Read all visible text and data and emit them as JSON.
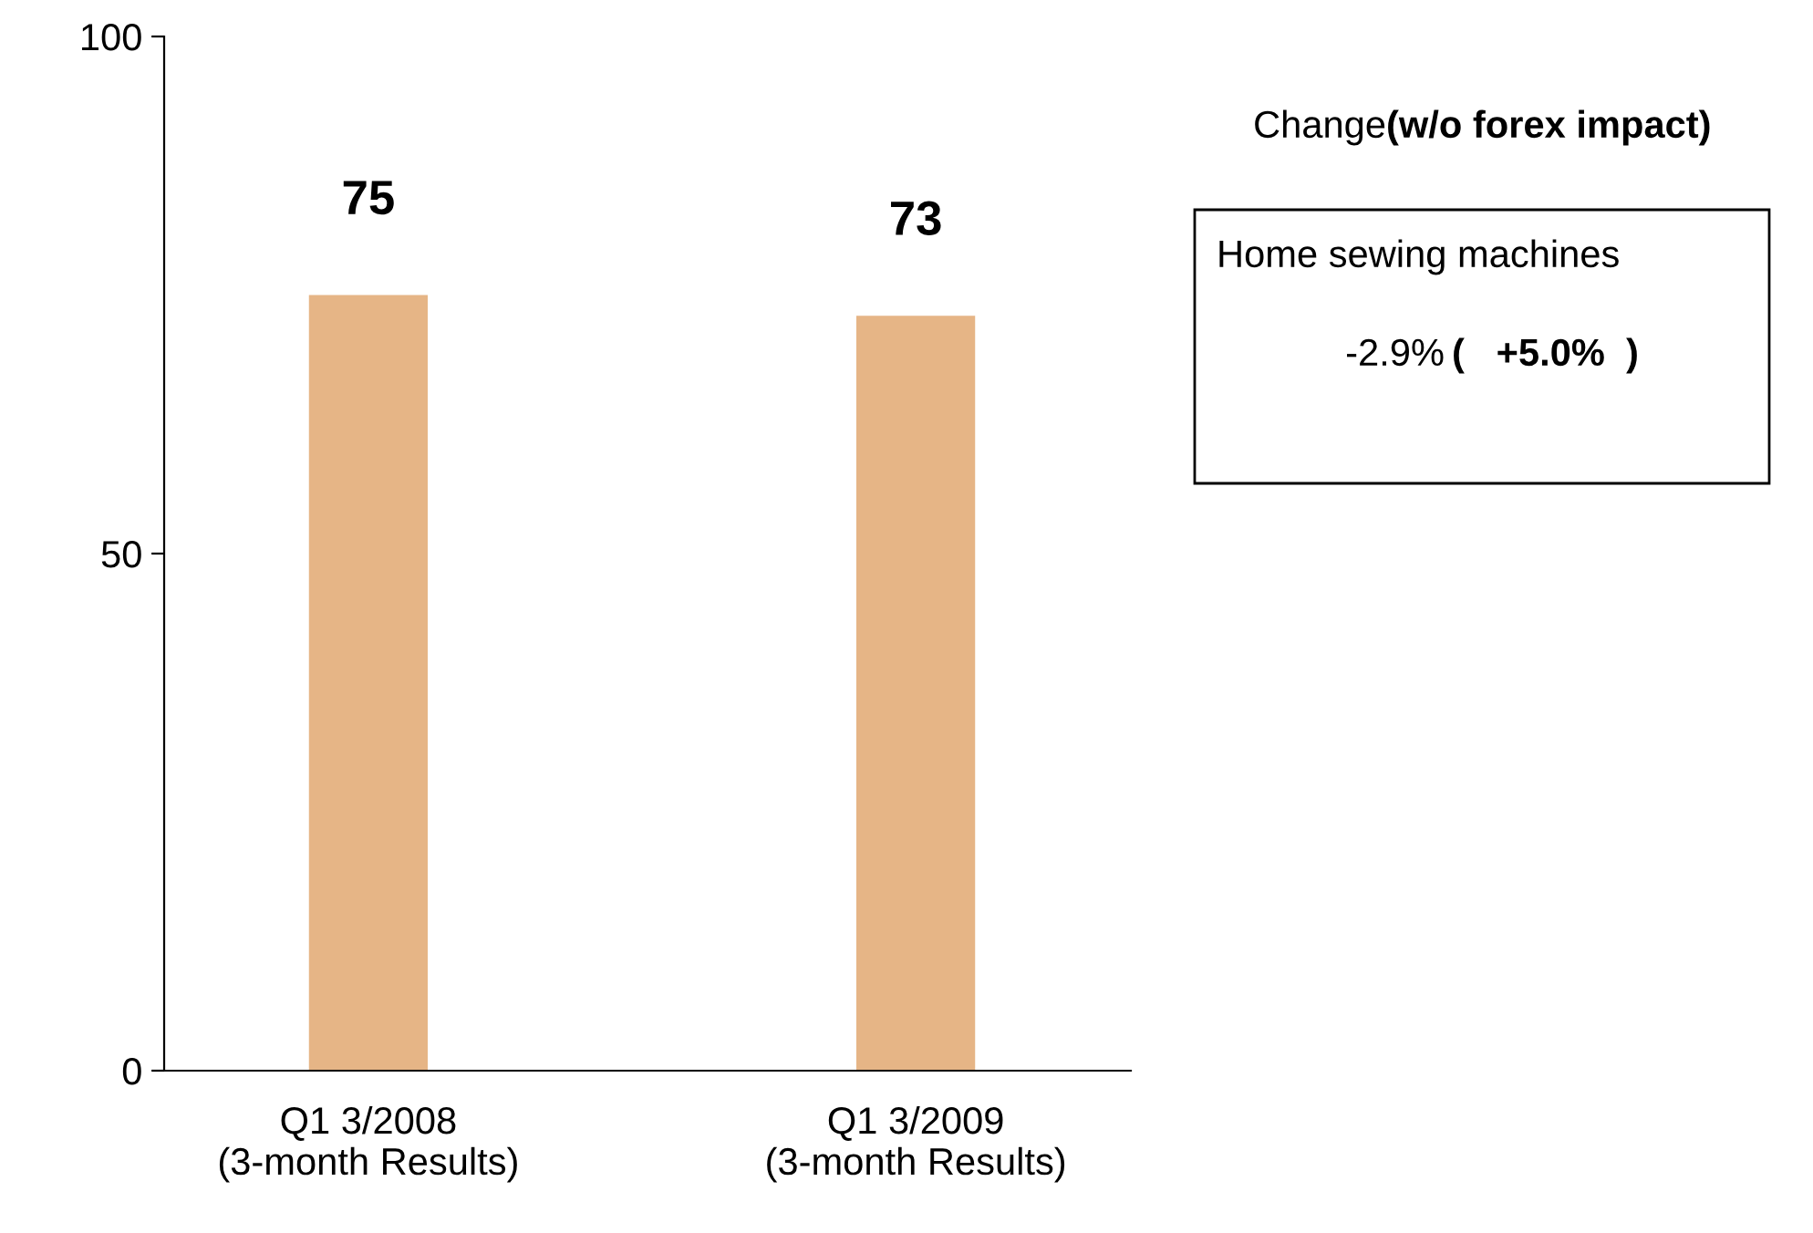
{
  "chart_data": {
    "type": "bar",
    "categories": [
      "Q1 3/2008\n(3-month Results)",
      "Q1 3/2009\n(3-month Results)"
    ],
    "values": [
      75,
      73
    ],
    "color": "#e6b586",
    "ylim": [
      0,
      100
    ],
    "yticks": [
      0,
      50,
      100
    ],
    "grid": false,
    "data_labels": true,
    "annotations": [
      "Change",
      "(w/o forex impact)",
      "Home sewing machines",
      "-2.9%",
      "(   +5.0%  )"
    ]
  }
}
